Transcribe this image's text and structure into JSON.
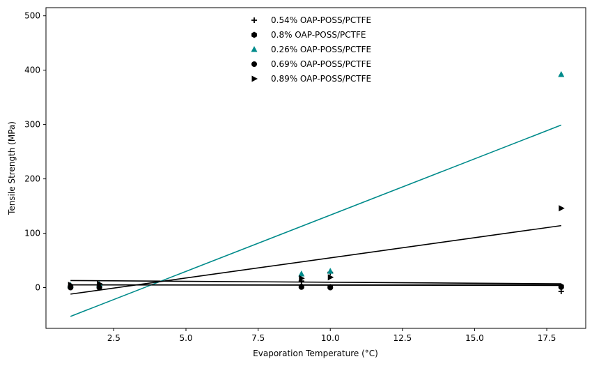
{
  "chart_data": {
    "type": "scatter",
    "title": "",
    "xlabel": "Evaporation Temperature (°C)",
    "ylabel": "Tensile Strength (MPa)",
    "xlim": [
      0.15,
      18.85
    ],
    "ylim": [
      -75,
      515
    ],
    "xticks": [
      2.5,
      5.0,
      7.5,
      10.0,
      12.5,
      15.0,
      17.5
    ],
    "xtick_labels": [
      "2.5",
      "5.0",
      "7.5",
      "10.0",
      "12.5",
      "15.0",
      "17.5"
    ],
    "yticks": [
      0,
      100,
      200,
      300,
      400,
      500
    ],
    "ytick_labels": [
      "0",
      "100",
      "200",
      "300",
      "400",
      "500"
    ],
    "grid": false,
    "legend_position": "top-center",
    "series": [
      {
        "name": "0.54% OAP-POSS/PCTFE",
        "marker": "plus",
        "color": "#000000",
        "x": [
          1,
          2,
          9,
          10,
          18
        ],
        "y": [
          2,
          1,
          12,
          28,
          -7
        ],
        "fit": {
          "x": [
            1,
            18
          ],
          "y": [
            13,
            7
          ]
        }
      },
      {
        "name": "0.8% OAP-POSS/PCTFE",
        "marker": "hexagon",
        "color": "#000000",
        "x": [
          1,
          2,
          9,
          10,
          18
        ],
        "y": [
          1,
          1,
          2,
          1,
          2
        ],
        "fit": {
          "x": [
            1,
            18
          ],
          "y": [
            5,
            4
          ]
        }
      },
      {
        "name": "0.26% OAP-POSS/PCTFE",
        "marker": "triangle-up",
        "color": "#008b8b",
        "x": [
          1,
          2,
          9,
          10,
          18
        ],
        "y": [
          4,
          6,
          25,
          30,
          392
        ],
        "fit": {
          "x": [
            1,
            18
          ],
          "y": [
            -53,
            299
          ]
        }
      },
      {
        "name": "0.69% OAP-POSS/PCTFE",
        "marker": "circle",
        "color": "#000000",
        "x": [
          1,
          2,
          9,
          10,
          18
        ],
        "y": [
          0,
          0,
          1,
          0,
          1
        ],
        "fit": {
          "x": [
            1,
            18
          ],
          "y": [
            5,
            5
          ]
        }
      },
      {
        "name": "0.89% OAP-POSS/PCTFE",
        "marker": "triangle-right",
        "color": "#000000",
        "x": [
          1,
          2,
          9,
          10,
          18
        ],
        "y": [
          5,
          7,
          17,
          19,
          146
        ],
        "fit": {
          "x": [
            1,
            18
          ],
          "y": [
            -12,
            114
          ]
        }
      }
    ]
  }
}
